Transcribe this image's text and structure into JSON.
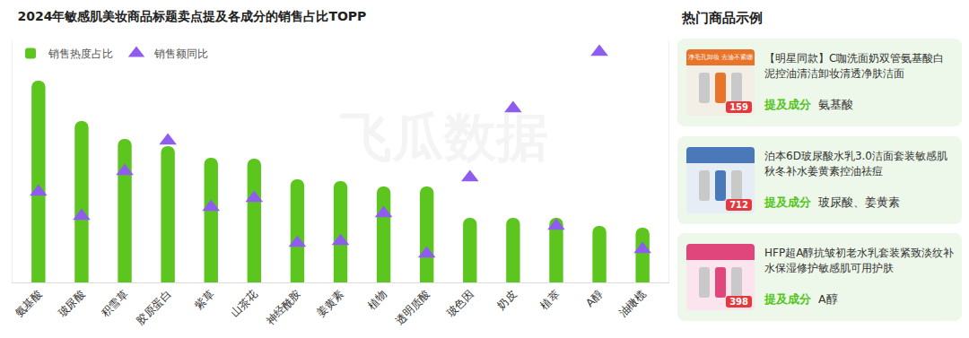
{
  "chart_data": {
    "type": "bar",
    "title": "2024年敏感肌美妆商品标题卖点提及各成分的销售占比TOPP",
    "categories": [
      "氨基酸",
      "玻尿酸",
      "积雪草",
      "胶原蛋白",
      "紫草",
      "山茶花",
      "神经酰胺",
      "姜黄素",
      "植物",
      "透明质酸",
      "玻色因",
      "奶皮",
      "植萃",
      "A醇",
      "油橄榄"
    ],
    "series": [
      {
        "name": "销售热度占比",
        "type": "bar",
        "color": "#5cc61f",
        "values": [
          225,
          180,
          160,
          152,
          139,
          138,
          115,
          113,
          107,
          107,
          72,
          72,
          72,
          63,
          61
        ]
      },
      {
        "name": "销售额同比",
        "type": "scatter",
        "marker": "triangle-up",
        "color": "#8f5cf0",
        "axis": "y2",
        "values": [
          101,
          74,
          124,
          158,
          84,
          94,
          44,
          46,
          77,
          32,
          117,
          194,
          63,
          257,
          37
        ]
      }
    ],
    "ylim": [
      0,
      270
    ],
    "yticks": [],
    "y2lim": [
      0,
      270
    ],
    "y2ticks": [],
    "tick_labels": "x",
    "grid": false,
    "legend": "top-left"
  },
  "watermark": "飞瓜数据",
  "side_panel": {
    "title": "热门商品示例",
    "items": [
      {
        "title": "【明星同款】C咖洗面奶双管氨基酸白泥控油清洁卸妆清透净肤洁面",
        "mention_label": "提及成分",
        "ingredients": "氨基酸",
        "image_text": "净毛孔卸妆 去油不紧绷",
        "price": "159"
      },
      {
        "title": "泊本6D玻尿酸水乳3.0洁面套装敏感肌秋冬补水姜黄素控油祛痘",
        "mention_label": "提及成分",
        "ingredients": "玻尿酸、姜黄素",
        "image_text": "",
        "price": "712"
      },
      {
        "title": "HFP超A醇抗皱初老水乳套装紧致淡纹补水保湿修护敏感肌可用护肤",
        "mention_label": "提及成分",
        "ingredients": "A醇",
        "image_text": "",
        "price": "398"
      }
    ]
  }
}
